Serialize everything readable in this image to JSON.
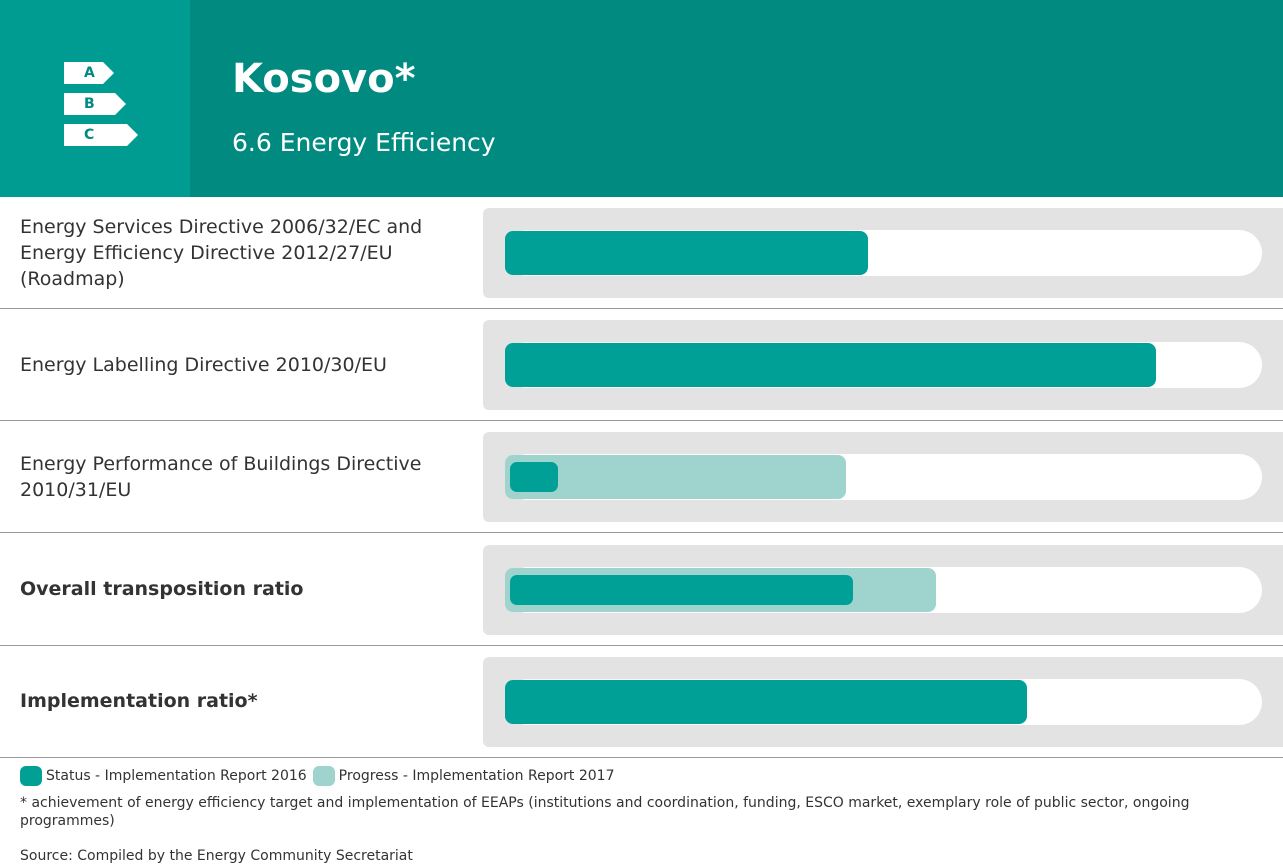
{
  "chart_data": {
    "type": "bar",
    "title": "Kosovo*",
    "subtitle": "6.6 Energy Efficiency",
    "icon_labels": [
      "A",
      "B",
      "C"
    ],
    "categories": [
      "Energy Services Directive 2006/32/EC and Energy Efficiency Directive 2012/27/EU (Roadmap)",
      "Energy Labelling Directive 2010/30/EU",
      "Energy Performance of Buildings Directive 2010/31/EU",
      "Overall transposition ratio",
      "Implementation ratio*"
    ],
    "xlim": [
      0,
      100
    ],
    "series": [
      {
        "name": "Status - Implementation Report 2016",
        "color": "#00a096",
        "values": [
          48,
          86,
          7,
          46,
          69
        ]
      },
      {
        "name": "Progress - Implementation Report 2017",
        "color": "#9ed4cd",
        "values": [
          null,
          null,
          45,
          57,
          null
        ]
      }
    ],
    "footnote": "* achievement of energy efficiency target and implementation of EEAPs (institutions and coordination, funding, ESCO market, exemplary role of public sector, ongoing programmes)",
    "source": "Source: Compiled by the Energy Community Secretariat"
  }
}
